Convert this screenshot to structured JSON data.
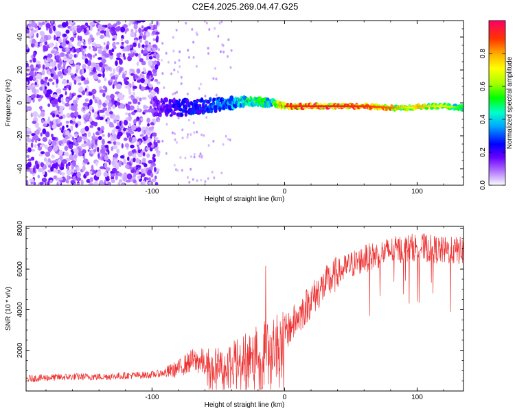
{
  "page": {
    "title": "C2E4.2025.269.04.47.G25"
  },
  "chart_data": [
    {
      "type": "heatmap",
      "title": "C2E4.2025.269.04.47.G25",
      "xlabel": "Height of straight line (km)",
      "ylabel": "Frequency (Hz)",
      "xlim": [
        -195,
        135
      ],
      "ylim": [
        -50,
        50
      ],
      "x_ticks": [
        -100,
        0,
        100
      ],
      "x_tick_labels": [
        "-100",
        "0",
        "100"
      ],
      "y_ticks": [
        -40,
        -20,
        0,
        20,
        40
      ],
      "y_tick_labels": [
        "-40",
        "-20",
        "0",
        "20",
        "40"
      ],
      "colorbar": {
        "label": "Normalized spectral amplitude",
        "range": [
          0,
          1
        ],
        "ticks": [
          0.0,
          0.2,
          0.4,
          0.6,
          0.8
        ],
        "tick_labels": [
          "0.0",
          "0.2",
          "0.4",
          "0.6",
          "0.8"
        ]
      },
      "ridge": {
        "x": [
          -100,
          -80,
          -60,
          -40,
          -20,
          -10,
          0,
          20,
          40,
          60,
          80,
          95,
          100,
          120,
          135
        ],
        "frequency": [
          -2,
          -3,
          -2,
          0,
          1,
          0,
          -2,
          -2,
          -2,
          -2,
          -3,
          -3,
          -2,
          -2,
          -3
        ],
        "amplitude": [
          0.15,
          0.25,
          0.3,
          0.4,
          0.6,
          0.5,
          0.9,
          0.95,
          0.95,
          0.9,
          0.85,
          0.7,
          0.8,
          0.7,
          0.5
        ]
      }
    },
    {
      "type": "line",
      "xlabel": "Height of straight line (km)",
      "ylabel": "SNR (10 * v/v)",
      "xlim": [
        -195,
        135
      ],
      "ylim": [
        0,
        8100
      ],
      "x_ticks": [
        -100,
        0,
        100
      ],
      "x_tick_labels": [
        "-100",
        "0",
        "100"
      ],
      "y_ticks": [
        2000,
        4000,
        6000,
        8000
      ],
      "y_tick_labels": [
        "2000",
        "4000",
        "6000",
        "8000"
      ],
      "series": [
        {
          "name": "SNR",
          "color": "#ee3333",
          "x": [
            -195,
            -180,
            -160,
            -140,
            -120,
            -100,
            -90,
            -80,
            -70,
            -60,
            -50,
            -40,
            -30,
            -20,
            -10,
            0,
            10,
            20,
            30,
            40,
            50,
            60,
            70,
            80,
            90,
            100,
            110,
            120,
            135
          ],
          "y": [
            600,
            650,
            700,
            700,
            750,
            800,
            900,
            1100,
            1500,
            1400,
            1300,
            1500,
            1800,
            2100,
            2400,
            2800,
            3600,
            4500,
            5200,
            5800,
            6200,
            6500,
            6700,
            6900,
            7000,
            7100,
            7000,
            6900,
            6900
          ]
        }
      ]
    }
  ]
}
